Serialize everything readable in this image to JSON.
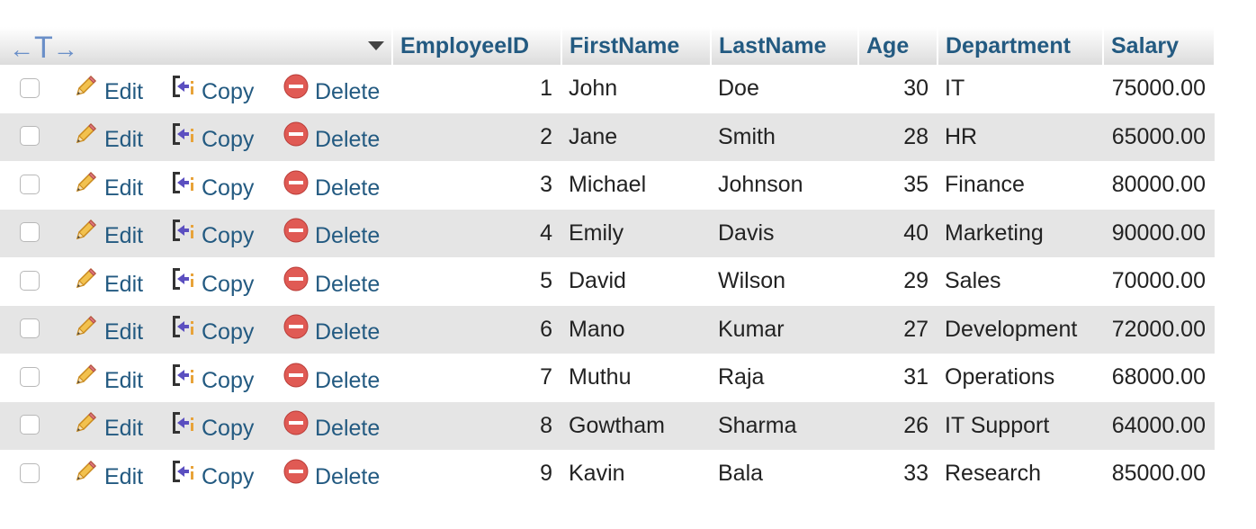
{
  "table": {
    "columns": [
      "EmployeeID",
      "FirstName",
      "LastName",
      "Age",
      "Department",
      "Salary"
    ],
    "actions": {
      "edit": "Edit",
      "copy": "Copy",
      "delete": "Delete"
    },
    "rows": [
      {
        "id": "1",
        "first": "John",
        "last": "Doe",
        "age": "30",
        "dept": "IT",
        "salary": "75000.00"
      },
      {
        "id": "2",
        "first": "Jane",
        "last": "Smith",
        "age": "28",
        "dept": "HR",
        "salary": "65000.00"
      },
      {
        "id": "3",
        "first": "Michael",
        "last": "Johnson",
        "age": "35",
        "dept": "Finance",
        "salary": "80000.00"
      },
      {
        "id": "4",
        "first": "Emily",
        "last": "Davis",
        "age": "40",
        "dept": "Marketing",
        "salary": "90000.00"
      },
      {
        "id": "5",
        "first": "David",
        "last": "Wilson",
        "age": "29",
        "dept": "Sales",
        "salary": "70000.00"
      },
      {
        "id": "6",
        "first": "Mano",
        "last": "Kumar",
        "age": "27",
        "dept": "Development",
        "salary": "72000.00"
      },
      {
        "id": "7",
        "first": "Muthu",
        "last": "Raja",
        "age": "31",
        "dept": "Operations",
        "salary": "68000.00"
      },
      {
        "id": "8",
        "first": "Gowtham",
        "last": "Sharma",
        "age": "26",
        "dept": "IT Support",
        "salary": "64000.00"
      },
      {
        "id": "9",
        "first": "Kavin",
        "last": "Bala",
        "age": "33",
        "dept": "Research",
        "salary": "85000.00"
      }
    ]
  },
  "icons": {
    "toolbar": "column-arrows-icon",
    "sort": "sort-caret-icon",
    "edit": "pencil-icon",
    "copy": "copy-icon",
    "delete": "delete-icon"
  },
  "colors": {
    "link": "#235a81",
    "header_bg_top": "#ffffff",
    "header_bg_bottom": "#dcdcdc",
    "row_even": "#e5e5e5",
    "row_odd": "#ffffff",
    "delete_icon": "#e05a54",
    "copy_icon": "#5b4fc0",
    "edit_icon": "#e8a33a"
  }
}
